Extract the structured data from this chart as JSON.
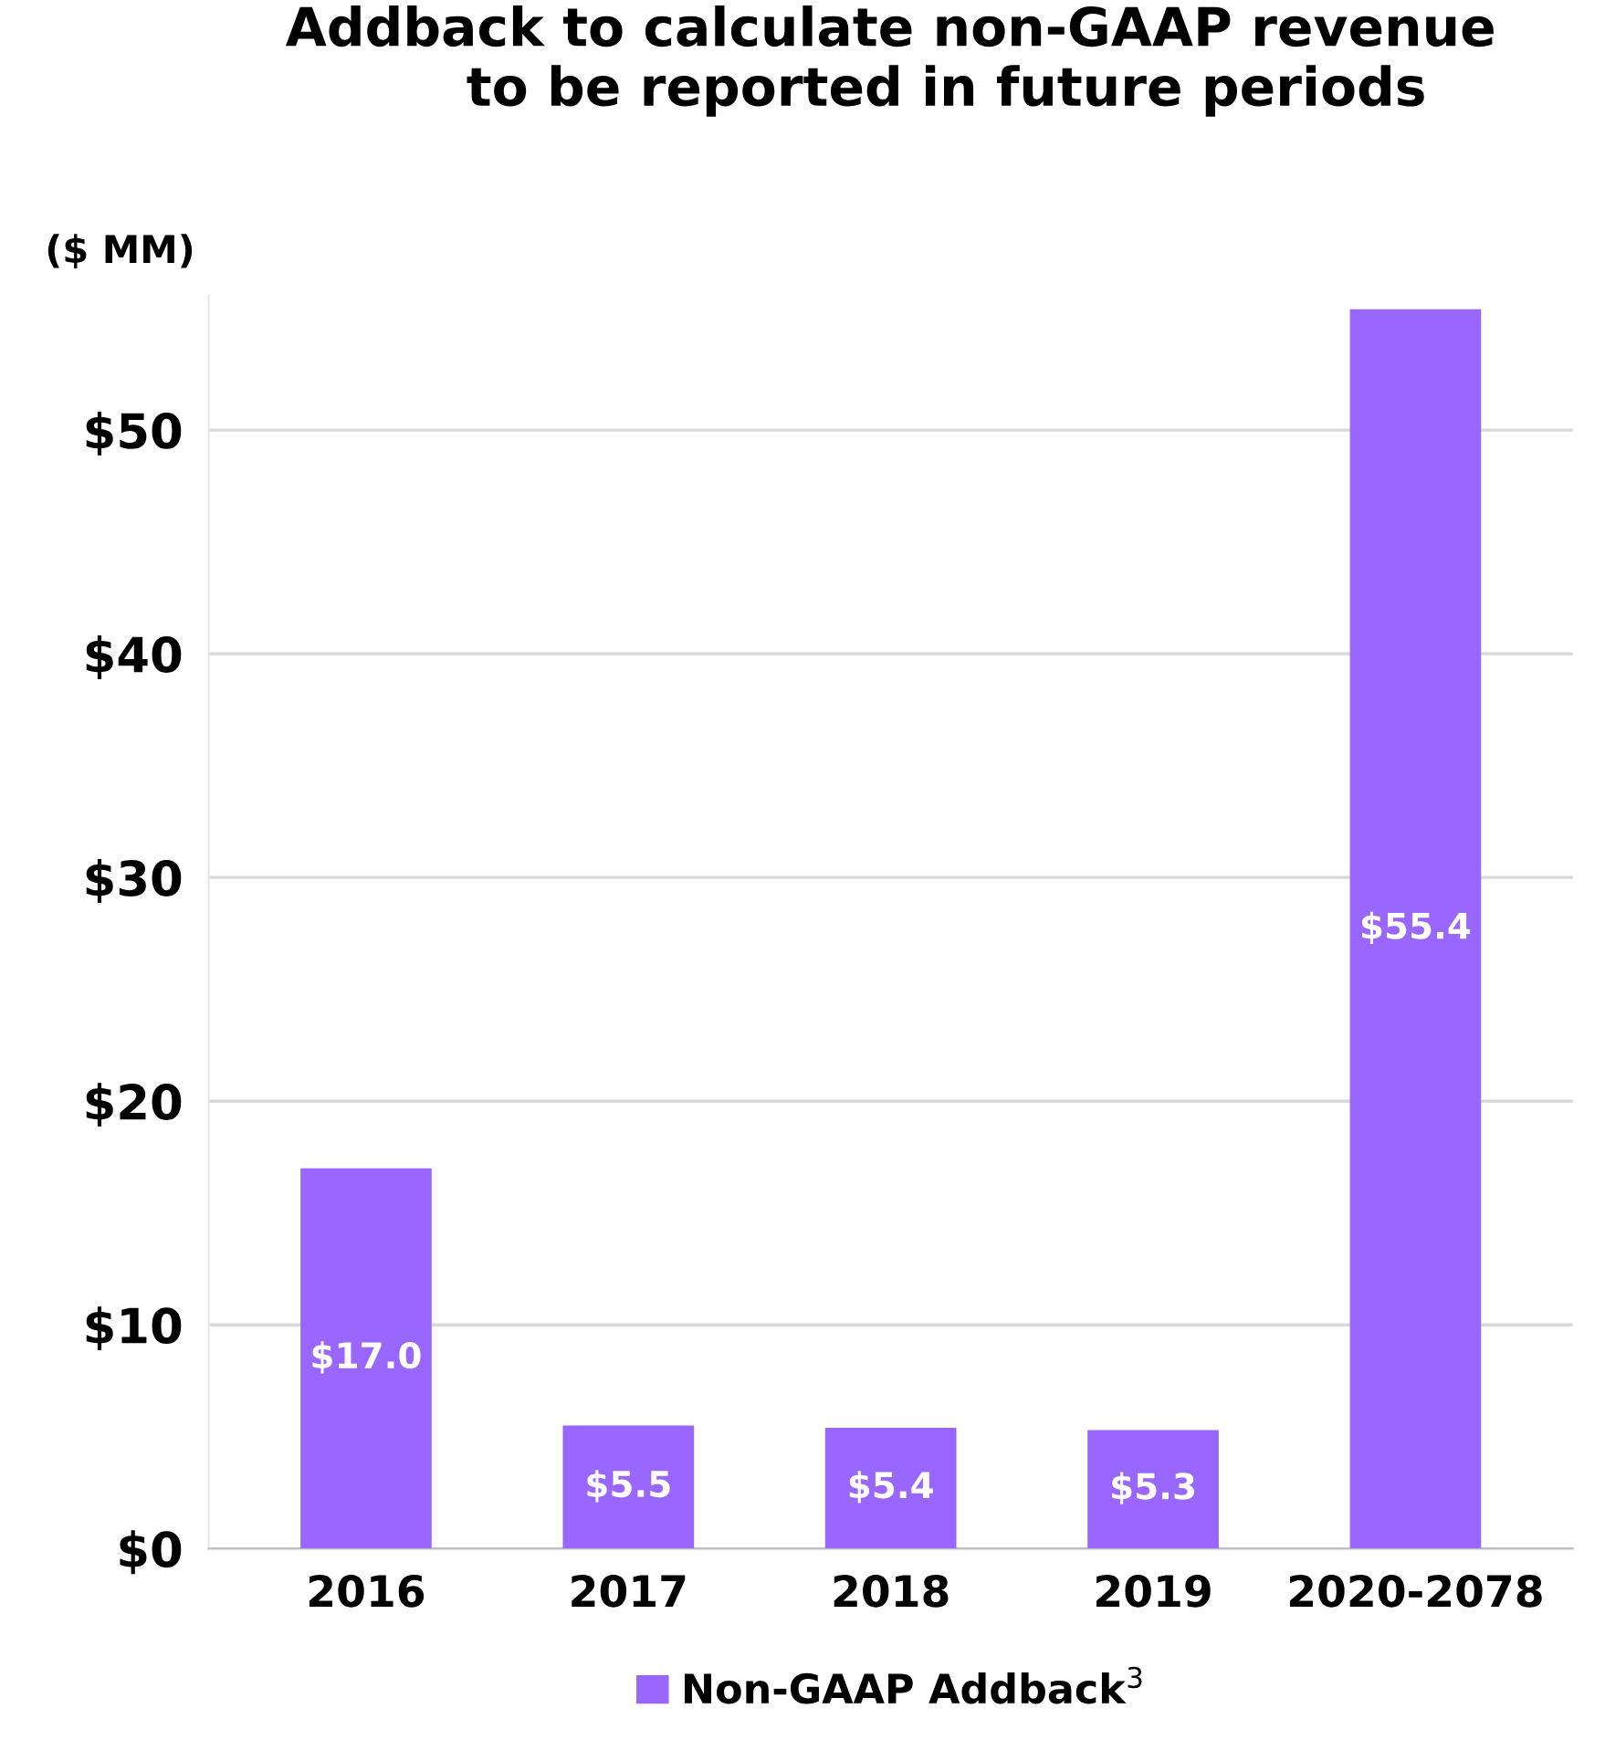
{
  "chart_data": {
    "type": "bar",
    "title": "Addback to calculate non-GAAP revenue\n      to be reported in future periods",
    "ylabel": "($ MM)",
    "categories": [
      "2016",
      "2017",
      "2018",
      "2019",
      "2020-2078"
    ],
    "series": [
      {
        "name": "Non-GAAP Addback$^{3}$",
        "color": "#9966ff",
        "values": [
          17.0,
          5.5,
          5.4,
          5.3,
          55.4
        ],
        "value_labels": [
          "$17.0",
          "$5.5",
          "$5.4",
          "$5.3",
          "$55.4"
        ]
      }
    ],
    "ylim": [
      0,
      56
    ],
    "yticks": [
      {
        "value": 0,
        "label": "$0"
      },
      {
        "value": 10,
        "label": "$10"
      },
      {
        "value": 20,
        "label": "$20"
      },
      {
        "value": 30,
        "label": "$30"
      },
      {
        "value": 40,
        "label": "$40"
      },
      {
        "value": 50,
        "label": "$50"
      }
    ],
    "grid": "y",
    "legend": "bottom"
  }
}
